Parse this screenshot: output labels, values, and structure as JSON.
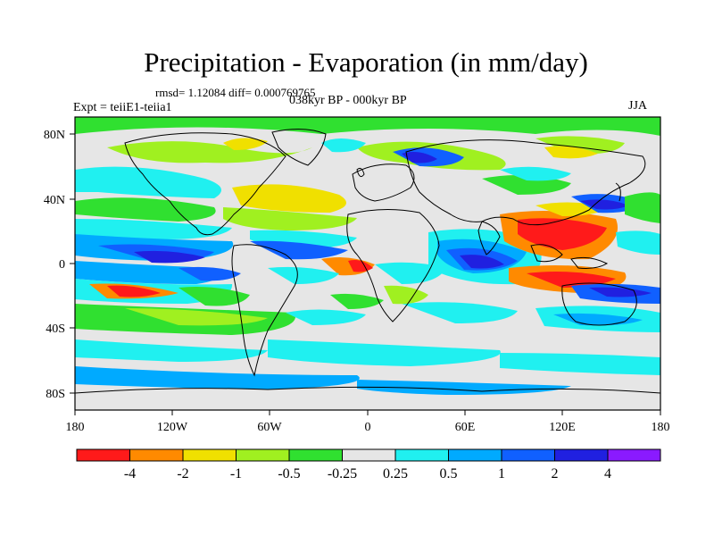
{
  "title": "Precipitation - Evaporation (in mm/day)",
  "stats_line": "rmsd= 1.12084 diff= 0.000769765",
  "experiment_label": "Expt = teiiE1-teiia1",
  "period_label": "038kyr BP - 000kyr BP",
  "season_label": "JJA",
  "axes": {
    "x_tick_labels": [
      "180",
      "120W",
      "60W",
      "0",
      "60E",
      "120E",
      "180"
    ],
    "y_tick_labels": [
      "80N",
      "40N",
      "0",
      "40S",
      "80S"
    ]
  },
  "colorbar": {
    "labels": [
      "-4",
      "-2",
      "-1",
      "-0.5",
      "-0.25",
      "0.25",
      "0.5",
      "1",
      "2",
      "4"
    ],
    "colors": [
      "#ff1a1a",
      "#ff8a00",
      "#f0e000",
      "#a0f020",
      "#30e030",
      "#e6e6e6",
      "#20f0f0",
      "#00aaff",
      "#1060ff",
      "#2020e0",
      "#8a1aff"
    ]
  },
  "colors": {
    "land_lines": "#000000",
    "neutral": "#e6e6e6"
  }
}
